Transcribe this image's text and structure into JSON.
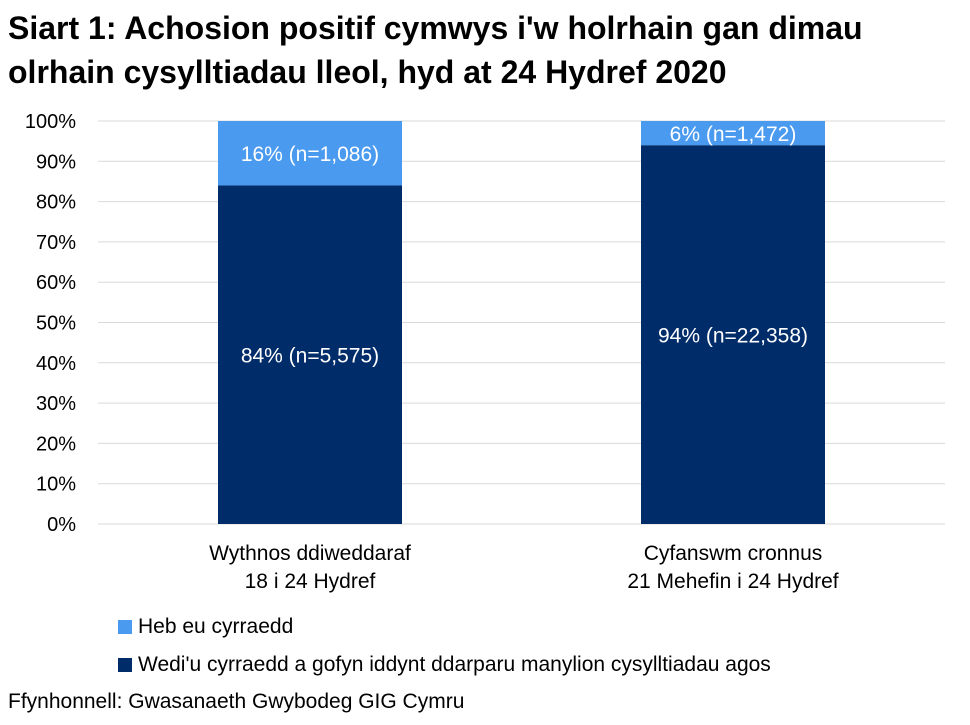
{
  "title_line1": "Siart 1: Achosion positif cymwys i'w holrhain gan dimau",
  "title_line2": "olrhain cysylltiadau lleol, hyd at 24 Hydref 2020",
  "source": "Ffynhonnell: Gwasanaeth Gwybodeg GIG Cymru",
  "colors": {
    "reached": "#002D6A",
    "not_reached": "#4A9AF0",
    "grid": "#d9d9d9"
  },
  "chart_data": {
    "type": "bar",
    "stacked": true,
    "categories": [
      [
        "Wythnos ddiweddaraf",
        "18 i 24 Hydref"
      ],
      [
        "Cyfanswm cronnus",
        "21 Mehefin i 24 Hydref"
      ]
    ],
    "series": [
      {
        "name": "Wedi'u cyrraedd a gofyn iddynt ddarparu manylion cysylltiadau agos",
        "values": [
          84,
          94
        ],
        "labels": [
          "84% (n=5,575)",
          "94% (n=22,358)"
        ],
        "color": "#002D6A"
      },
      {
        "name": "Heb eu cyrraedd",
        "values": [
          16,
          6
        ],
        "labels": [
          "16% (n=1,086)",
          "6% (n=1,472)"
        ],
        "color": "#4A9AF0"
      }
    ],
    "ylim": [
      0,
      100
    ],
    "yticks": [
      "0%",
      "10%",
      "20%",
      "30%",
      "40%",
      "50%",
      "60%",
      "70%",
      "80%",
      "90%",
      "100%"
    ],
    "grid": true,
    "legend_position": "bottom"
  }
}
